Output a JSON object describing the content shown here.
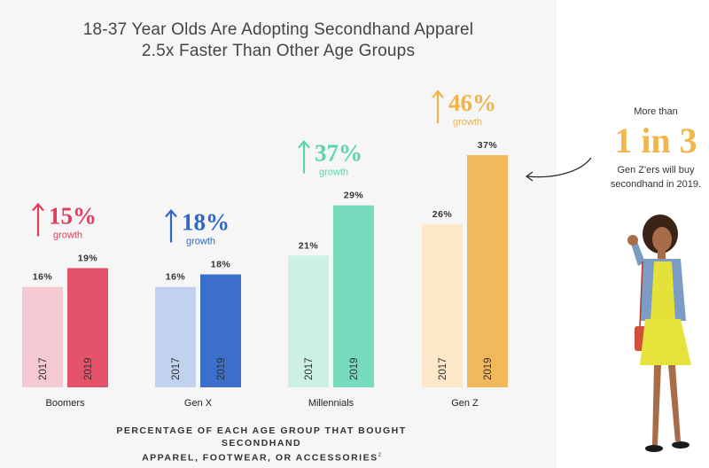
{
  "title": {
    "line1": "18-37 Year Olds Are Adopting Secondhand Apparel",
    "line2": "2.5x Faster Than Other Age Groups"
  },
  "chart_data": {
    "type": "bar",
    "title": "18-37 Year Olds Are Adopting Secondhand Apparel 2.5x Faster Than Other Age Groups",
    "xlabel": "PERCENTAGE OF EACH AGE GROUP THAT BOUGHT SECONDHAND APPAREL, FOOTWEAR, OR ACCESSORIES",
    "ylabel": "",
    "ylim": [
      0,
      40
    ],
    "categories": [
      "Boomers",
      "Gen X",
      "Millennials",
      "Gen Z"
    ],
    "series": [
      {
        "name": "2017",
        "values": [
          16,
          16,
          21,
          26
        ],
        "labels": [
          "16%",
          "16%",
          "21%",
          "26%"
        ]
      },
      {
        "name": "2019",
        "values": [
          19,
          18,
          29,
          37
        ],
        "labels": [
          "19%",
          "18%",
          "29%",
          "37%"
        ]
      }
    ],
    "growth": [
      {
        "label": "15%",
        "word": "growth"
      },
      {
        "label": "18%",
        "word": "growth"
      },
      {
        "label": "37%",
        "word": "growth"
      },
      {
        "label": "46%",
        "word": "growth"
      }
    ],
    "colors": {
      "2017": [
        "#f4c9d2",
        "#c2d2ee",
        "#ccf1e4",
        "#fce7c8"
      ],
      "2019": [
        "#e4536a",
        "#3b6fc9",
        "#77dbbd",
        "#f2b85c"
      ],
      "growth": [
        "#e03d5c",
        "#2e67c6",
        "#5cd2b1",
        "#f0b24a"
      ]
    }
  },
  "footnote": {
    "line1": "PERCENTAGE OF EACH AGE GROUP THAT BOUGHT SECONDHAND",
    "line2": "APPAREL, FOOTWEAR, OR ACCESSORIES",
    "sup": "2"
  },
  "callout": {
    "pre": "More than",
    "big": "1 in 3",
    "post_line1": "Gen Z'ers will buy",
    "post_line2": "secondhand in 2019."
  }
}
